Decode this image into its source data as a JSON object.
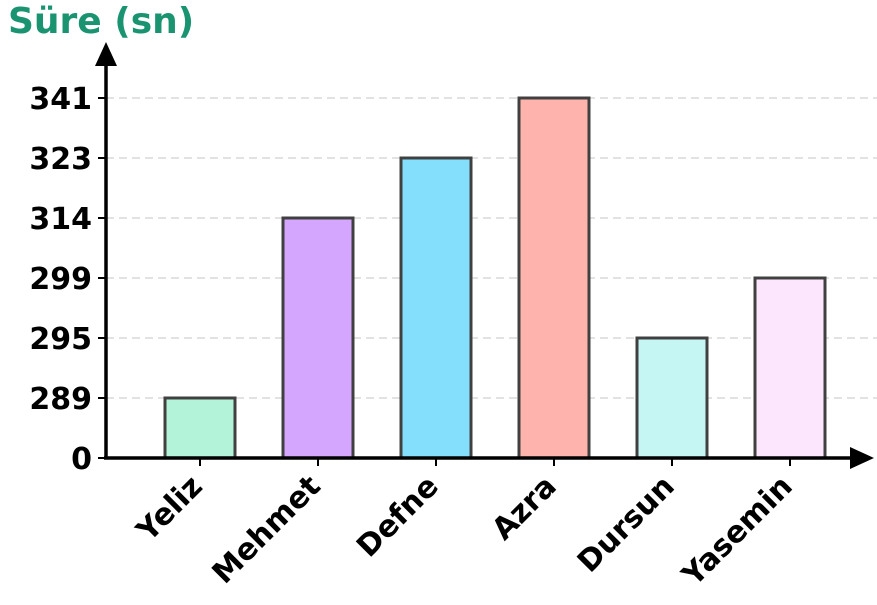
{
  "chart_data": {
    "type": "bar",
    "ylabel": "Süre (sn)",
    "categories": [
      "Yeliz",
      "Mehmet",
      "Defne",
      "Azra",
      "Dursun",
      "Yasemin"
    ],
    "values": [
      289,
      314,
      323,
      341,
      295,
      299
    ],
    "y_ticks": [
      0,
      289,
      295,
      299,
      314,
      323,
      341
    ],
    "colors": [
      "#b3f3d9",
      "#d5a6fd",
      "#84dffd",
      "#feb3ad",
      "#c5f6f4",
      "#fbe6fd"
    ],
    "grid": true,
    "axis_note": "Y-axis tick labels are rank-ordered (not linearly spaced)"
  }
}
